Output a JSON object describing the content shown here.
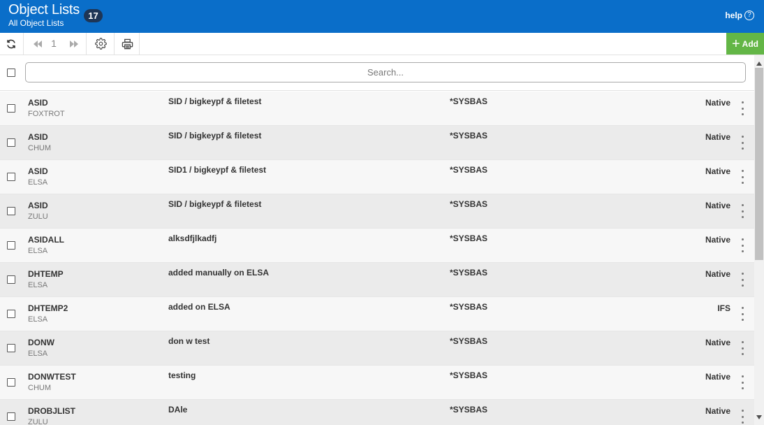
{
  "header": {
    "title": "Object Lists",
    "subtitle": "All Object Lists",
    "count": "17",
    "help_label": "help",
    "help_icon_glyph": "?",
    "background_color": "#0a6ec9"
  },
  "toolbar": {
    "refresh_icon": "refresh-icon",
    "first_page_icon": "double-chevron-left-icon",
    "page_number": "1",
    "last_page_icon": "double-chevron-right-icon",
    "settings_icon": "gear-icon",
    "print_icon": "printer-icon",
    "add_label": "Add",
    "add_color": "#63b646"
  },
  "search": {
    "placeholder": "Search...",
    "value": ""
  },
  "rows": [
    {
      "name": "ASID",
      "system": "FOXTROT",
      "description": "SID / bigkeypf & filetest",
      "asp": "*SYSBAS",
      "type": "Native"
    },
    {
      "name": "ASID",
      "system": "CHUM",
      "description": "SID / bigkeypf & filetest",
      "asp": "*SYSBAS",
      "type": "Native"
    },
    {
      "name": "ASID",
      "system": "ELSA",
      "description": "SID1 / bigkeypf & filetest",
      "asp": "*SYSBAS",
      "type": "Native"
    },
    {
      "name": "ASID",
      "system": "ZULU",
      "description": "SID / bigkeypf & filetest",
      "asp": "*SYSBAS",
      "type": "Native"
    },
    {
      "name": "ASIDALL",
      "system": "ELSA",
      "description": "alksdfjlkadfj",
      "asp": "*SYSBAS",
      "type": "Native"
    },
    {
      "name": "DHTEMP",
      "system": "ELSA",
      "description": "added manually on ELSA",
      "asp": "*SYSBAS",
      "type": "Native"
    },
    {
      "name": "DHTEMP2",
      "system": "ELSA",
      "description": "added on ELSA",
      "asp": "*SYSBAS",
      "type": "IFS"
    },
    {
      "name": "DONW",
      "system": "ELSA",
      "description": "don w test",
      "asp": "*SYSBAS",
      "type": "Native"
    },
    {
      "name": "DONWTEST",
      "system": "CHUM",
      "description": "testing",
      "asp": "*SYSBAS",
      "type": "Native"
    },
    {
      "name": "DROBJLIST",
      "system": "ZULU",
      "description": "DAle",
      "asp": "*SYSBAS",
      "type": "Native"
    }
  ]
}
